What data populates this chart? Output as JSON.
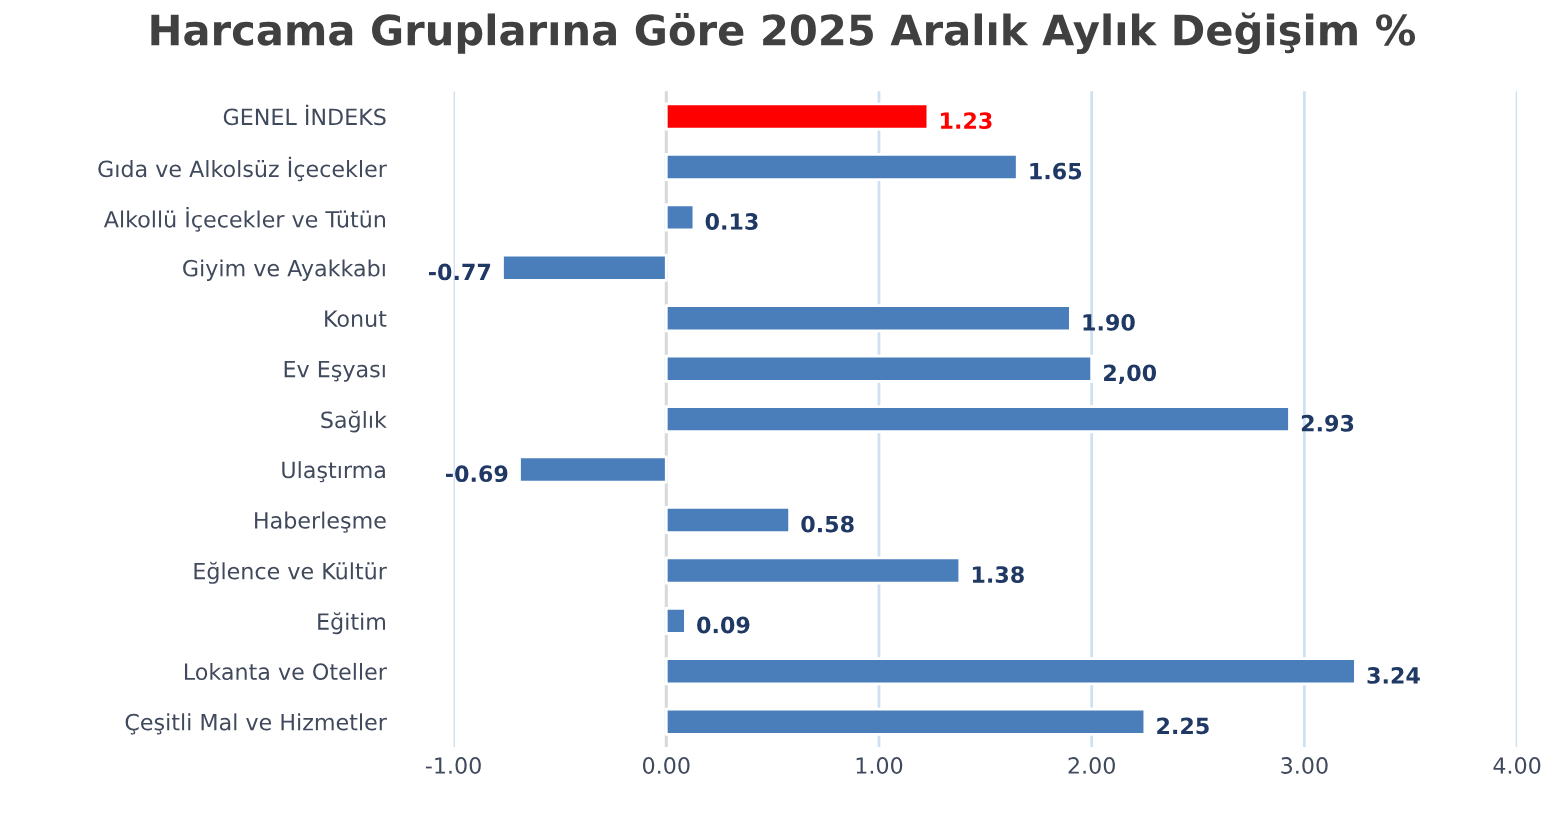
{
  "chart_data": {
    "type": "bar",
    "orientation": "horizontal",
    "title": "Harcama Gruplarına Göre 2025 Aralık Aylık Değişim %",
    "categories": [
      "GENEL İNDEKS",
      "Gıda ve Alkolsüz İçecekler",
      "Alkollü İçecekler ve Tütün",
      "Giyim ve Ayakkabı",
      "Konut",
      "Ev Eşyası",
      "Sağlık",
      "Ulaştırma",
      "Haberleşme",
      "Eğlence ve Kültür",
      "Eğitim",
      "Lokanta ve Oteller",
      "Çeşitli Mal ve Hizmetler"
    ],
    "values": [
      1.23,
      1.65,
      0.13,
      -0.77,
      1.9,
      2.0,
      2.93,
      -0.69,
      0.58,
      1.38,
      0.09,
      3.24,
      2.25
    ],
    "value_labels": [
      "1.23",
      "1.65",
      "0.13",
      "-0.77",
      "1.90",
      "2,00",
      "2.93",
      "-0.69",
      "0.58",
      "1.38",
      "0.09",
      "3.24",
      "2.25"
    ],
    "colors": [
      "#ff0000",
      "#4a7ebb",
      "#4a7ebb",
      "#4a7ebb",
      "#4a7ebb",
      "#4a7ebb",
      "#4a7ebb",
      "#4a7ebb",
      "#4a7ebb",
      "#4a7ebb",
      "#4a7ebb",
      "#4a7ebb",
      "#4a7ebb"
    ],
    "xlim": [
      -1.0,
      4.0
    ],
    "xticks": [
      {
        "value": -1.0,
        "label": "-1.00"
      },
      {
        "value": 0.0,
        "label": "0.00"
      },
      {
        "value": 1.0,
        "label": "1.00"
      },
      {
        "value": 2.0,
        "label": "2.00"
      },
      {
        "value": 3.0,
        "label": "3.00"
      },
      {
        "value": 4.0,
        "label": "4.00"
      }
    ],
    "grid": "x"
  }
}
